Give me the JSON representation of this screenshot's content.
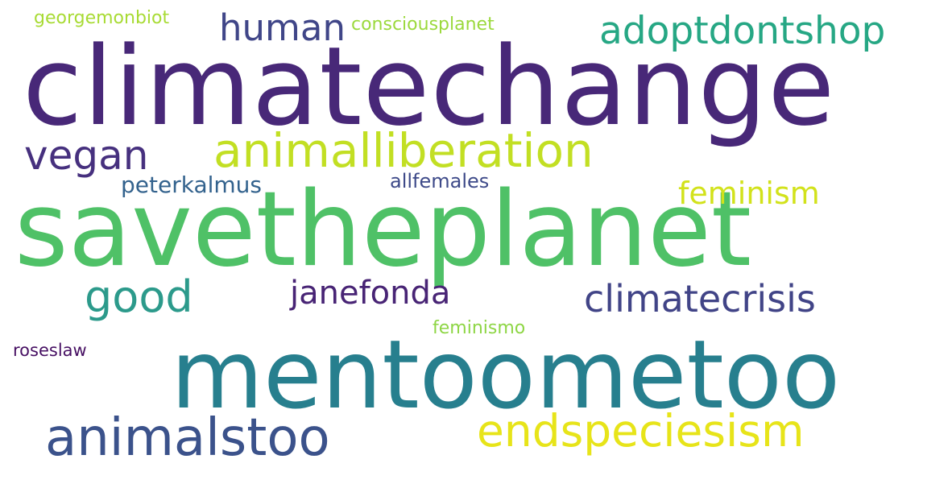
{
  "wordcloud": {
    "words": [
      {
        "text": "climatechange",
        "color": "#482878"
      },
      {
        "text": "savetheplanet",
        "color": "#4fc167"
      },
      {
        "text": "mentoometoo",
        "color": "#277f8e"
      },
      {
        "text": "animalliberation",
        "color": "#c2df23"
      },
      {
        "text": "animalstoo",
        "color": "#3b528b"
      },
      {
        "text": "endspeciesism",
        "color": "#e7e419"
      },
      {
        "text": "adoptdontshop",
        "color": "#26a784"
      },
      {
        "text": "human",
        "color": "#404688"
      },
      {
        "text": "vegan",
        "color": "#46307e"
      },
      {
        "text": "good",
        "color": "#2c9a8b"
      },
      {
        "text": "climatecrisis",
        "color": "#414487"
      },
      {
        "text": "janefonda",
        "color": "#482475"
      },
      {
        "text": "feminism",
        "color": "#d2e21b"
      },
      {
        "text": "peterkalmus",
        "color": "#33628d"
      },
      {
        "text": "allfemales",
        "color": "#3e4a89"
      },
      {
        "text": "georgemonbiot",
        "color": "#a8db34"
      },
      {
        "text": "consciousplanet",
        "color": "#9bd93c"
      },
      {
        "text": "feminismo",
        "color": "#8ed645"
      },
      {
        "text": "roseslaw",
        "color": "#471063"
      }
    ]
  }
}
